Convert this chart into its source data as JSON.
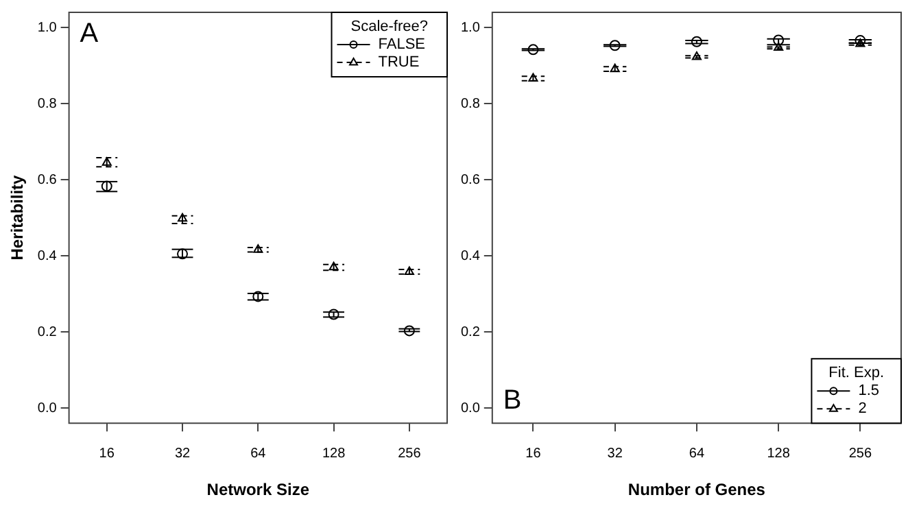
{
  "chart_data": [
    {
      "type": "scatter",
      "ylabel": "Heritability",
      "xlabel": "Network Size",
      "categories": [
        "16",
        "32",
        "64",
        "128",
        "256"
      ],
      "ylim": [
        -0.04,
        1.04
      ],
      "yticks": [
        {
          "value": 0,
          "label": "0.0"
        },
        {
          "value": 0.2,
          "label": "0.2"
        },
        {
          "value": 0.4,
          "label": "0.4"
        },
        {
          "value": 0.6,
          "label": "0.6"
        },
        {
          "value": 0.8,
          "label": "0.8"
        },
        {
          "value": 1,
          "label": "1.0"
        }
      ],
      "grid": false,
      "legend": "top right",
      "legend_title": "Scale-free?",
      "annotations": [
        "A"
      ],
      "series": [
        {
          "name": "FALSE",
          "color": "#000000",
          "marker": "circle",
          "line_style": "solid",
          "values": [
            0.583,
            0.405,
            0.293,
            0.246,
            0.203
          ],
          "errors": [
            [
              0.569,
              0.595
            ],
            [
              0.396,
              0.417
            ],
            [
              0.284,
              0.301
            ],
            [
              0.239,
              0.252
            ],
            [
              0.201,
              0.208
            ]
          ]
        },
        {
          "name": "TRUE",
          "color": "#000000",
          "marker": "triangle",
          "line_style": "dashed",
          "values": [
            0.645,
            0.498,
            0.416,
            0.37,
            0.358
          ],
          "errors": [
            [
              0.634,
              0.658
            ],
            [
              0.485,
              0.505
            ],
            [
              0.41,
              0.422
            ],
            [
              0.362,
              0.377
            ],
            [
              0.352,
              0.364
            ]
          ]
        }
      ]
    },
    {
      "type": "scatter",
      "xlabel": "Number of Genes",
      "categories": [
        "16",
        "32",
        "64",
        "128",
        "256"
      ],
      "ylim": [
        -0.04,
        1.04
      ],
      "yticks": [
        {
          "value": 0,
          "label": "0.0"
        },
        {
          "value": 0.2,
          "label": "0.2"
        },
        {
          "value": 0.4,
          "label": "0.4"
        },
        {
          "value": 0.6,
          "label": "0.6"
        },
        {
          "value": 0.8,
          "label": "0.8"
        },
        {
          "value": 1,
          "label": "1.0"
        }
      ],
      "grid": false,
      "legend": "bottom right",
      "legend_title": "Fit. Exp.",
      "annotations": [
        "B"
      ],
      "series": [
        {
          "name": "1.5",
          "color": "#000000",
          "marker": "circle",
          "line_style": "solid",
          "values": [
            0.942,
            0.953,
            0.963,
            0.967,
            0.966
          ],
          "errors": [
            [
              0.94,
              0.944
            ],
            [
              0.951,
              0.955
            ],
            [
              0.958,
              0.966
            ],
            [
              0.955,
              0.97
            ],
            [
              0.959,
              0.968
            ]
          ]
        },
        {
          "name": "2",
          "color": "#000000",
          "marker": "triangle",
          "line_style": "dashed",
          "values": [
            0.866,
            0.891,
            0.923,
            0.947,
            0.957
          ],
          "errors": [
            [
              0.86,
              0.872
            ],
            [
              0.885,
              0.897
            ],
            [
              0.92,
              0.926
            ],
            [
              0.944,
              0.949
            ],
            [
              0.954,
              0.96
            ]
          ]
        }
      ]
    }
  ]
}
